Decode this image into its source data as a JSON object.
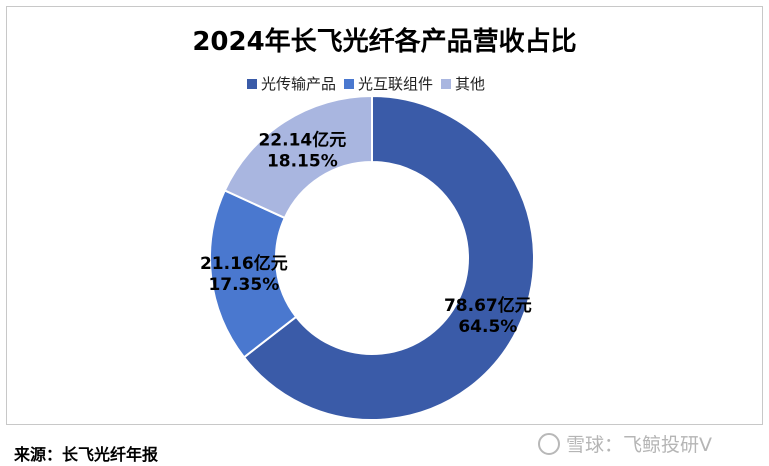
{
  "chart_data": {
    "type": "pie",
    "title": "2024年长飞光纤各产品营收占比",
    "categories": [
      "光传输产品",
      "光互联组件",
      "其他"
    ],
    "values": [
      78.67,
      21.16,
      22.14
    ],
    "percents": [
      "64.5%",
      "17.35%",
      "18.15%"
    ],
    "value_labels": [
      "78.67亿元",
      "21.16亿元",
      "22.14亿元"
    ],
    "colors": [
      "#3A5BA8",
      "#4A78CF",
      "#A9B6E0"
    ],
    "donut": true,
    "legend_position": "top"
  },
  "source": "来源：长飞光纤年报",
  "watermark": "雪球：飞鲸投研V"
}
